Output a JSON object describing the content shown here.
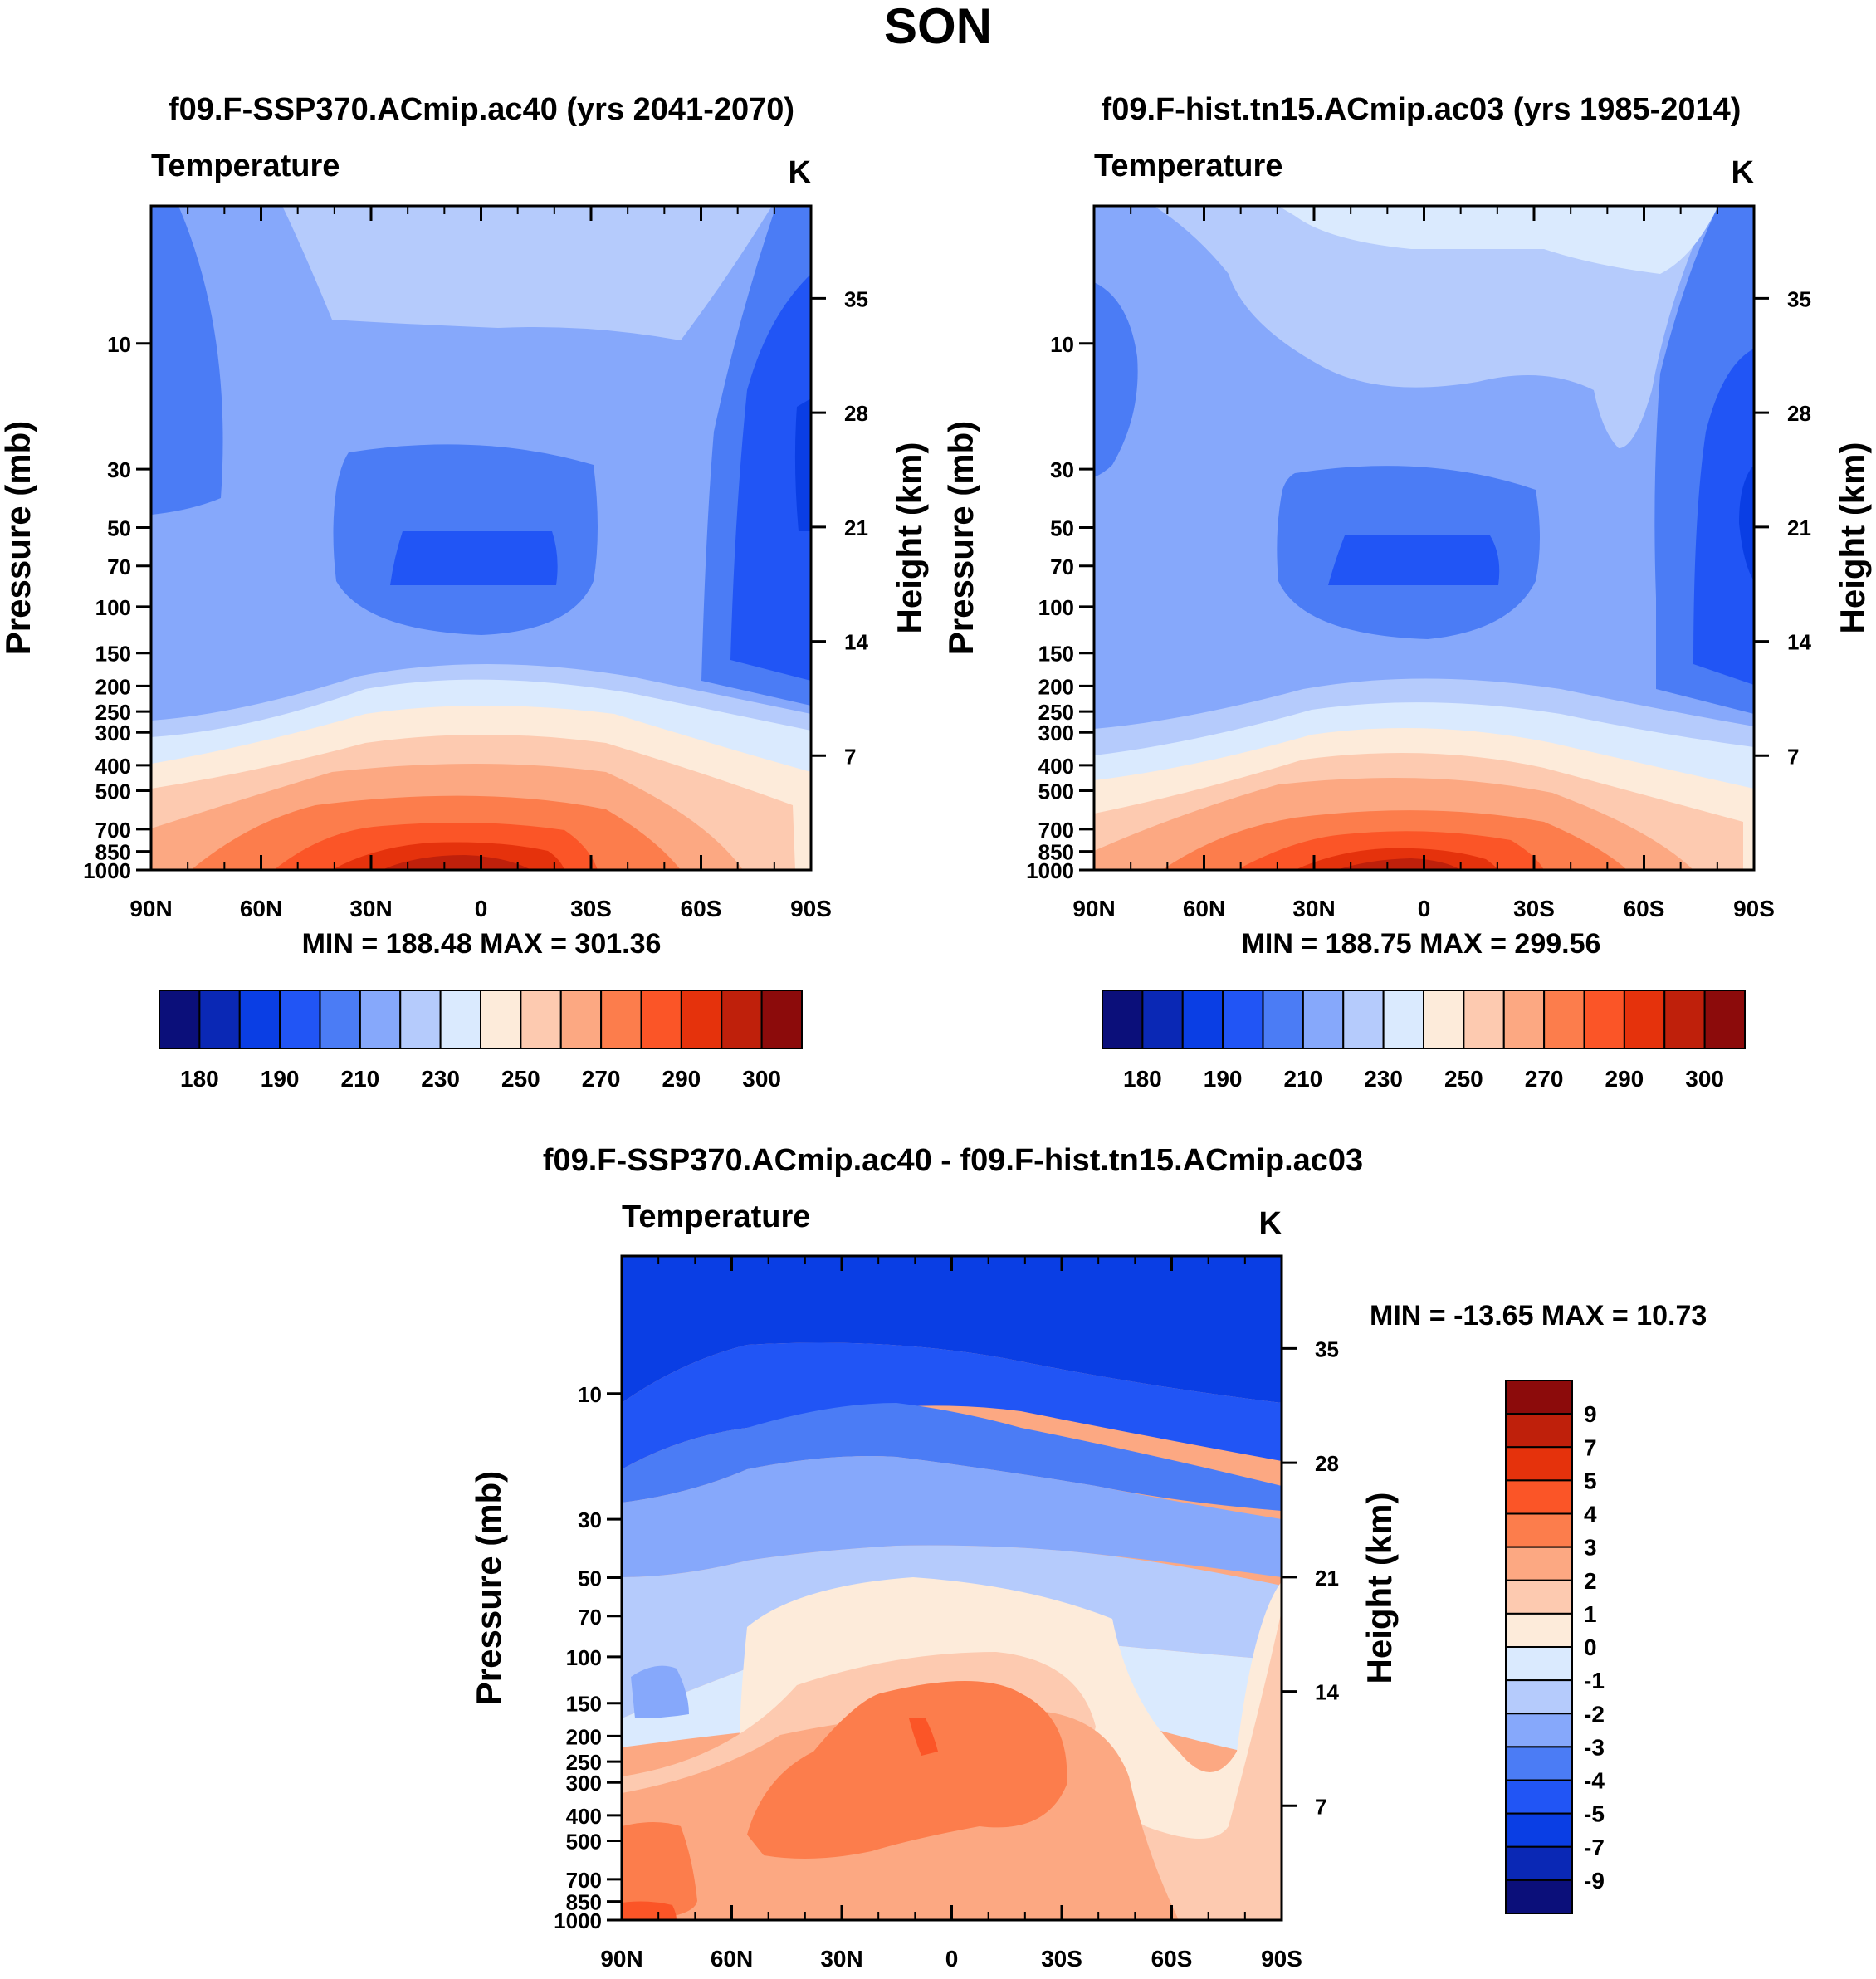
{
  "figure": {
    "title": "SON",
    "panels": [
      {
        "title": "f09.F-SSP370.ACmip.ac40 (yrs 2041-2070)",
        "variable": "Temperature",
        "units": "K",
        "min_max_text": "MIN = 188.48  MAX = 301.36",
        "ylabel": "Pressure (mb)",
        "ylabel_right": "Height (km)"
      },
      {
        "title": "f09.F-hist.tn15.ACmip.ac03 (yrs 1985-2014)",
        "variable": "Temperature",
        "units": "K",
        "min_max_text": "MIN = 188.75  MAX = 299.56",
        "ylabel": "Pressure (mb)",
        "ylabel_right": "Height (km)"
      },
      {
        "title": "f09.F-SSP370.ACmip.ac40 - f09.F-hist.tn15.ACmip.ac03",
        "variable": "Temperature",
        "units": "K",
        "min_max_text": "MIN = -13.65  MAX =  10.73",
        "ylabel": "Pressure (mb)",
        "ylabel_right": "Height (km)"
      }
    ],
    "x_ticks": [
      "90N",
      "60N",
      "30N",
      "0",
      "30S",
      "60S",
      "90S"
    ],
    "pressure_ticks": [
      "10",
      "30",
      "50",
      "70",
      "100",
      "150",
      "200",
      "250",
      "300",
      "400",
      "500",
      "700",
      "850",
      "1000"
    ],
    "height_ticks": [
      "35",
      "28",
      "21",
      "14",
      "7"
    ],
    "abs_colorbar_labels": [
      "180",
      "190",
      "210",
      "230",
      "250",
      "270",
      "290",
      "300"
    ],
    "diff_colorbar_labels": [
      "9",
      "7",
      "5",
      "4",
      "3",
      "2",
      "1",
      "0",
      "-1",
      "-2",
      "-3",
      "-4",
      "-5",
      "-7",
      "-9"
    ]
  },
  "colors": {
    "abs_palette": [
      "#0b0f7a",
      "#0a28b5",
      "#0a3ee4",
      "#2155f5",
      "#4b7cf5",
      "#86a8fb",
      "#b5cbfc",
      "#daeafe",
      "#fdebda",
      "#fdcab0",
      "#fca882",
      "#fc7d4c",
      "#fb5527",
      "#e5320c",
      "#bf200b",
      "#8c0b0b"
    ],
    "diff_palette": [
      "#8c0b0b",
      "#bf200b",
      "#e5320c",
      "#fb5527",
      "#fc7d4c",
      "#fca882",
      "#fdcab0",
      "#fdebda",
      "#daeafe",
      "#b5cbfc",
      "#86a8fb",
      "#4b7cf5",
      "#2155f5",
      "#0a3ee4",
      "#0a28b5",
      "#0b0f7a"
    ]
  },
  "chart_data": [
    {
      "type": "heatmap",
      "title": "f09.F-SSP370.ACmip.ac40 (yrs 2041-2070)",
      "variable": "Temperature",
      "units": "K",
      "x": [
        "90N",
        "60N",
        "30N",
        "0",
        "30S",
        "60S",
        "90S"
      ],
      "ylabel": "Pressure (mb)",
      "ylabel_right": "Height (km)",
      "yrange_mb": [
        3,
        1000
      ],
      "levels": [
        180,
        185,
        190,
        200,
        210,
        220,
        230,
        240,
        250,
        260,
        270,
        280,
        290,
        295,
        300
      ],
      "min": 188.48,
      "max": 301.36
    },
    {
      "type": "heatmap",
      "title": "f09.F-hist.tn15.ACmip.ac03 (yrs 1985-2014)",
      "variable": "Temperature",
      "units": "K",
      "x": [
        "90N",
        "60N",
        "30N",
        "0",
        "30S",
        "60S",
        "90S"
      ],
      "ylabel": "Pressure (mb)",
      "ylabel_right": "Height (km)",
      "yrange_mb": [
        3,
        1000
      ],
      "levels": [
        180,
        185,
        190,
        200,
        210,
        220,
        230,
        240,
        250,
        260,
        270,
        280,
        290,
        295,
        300
      ],
      "min": 188.75,
      "max": 299.56
    },
    {
      "type": "heatmap",
      "title": "f09.F-SSP370.ACmip.ac40 - f09.F-hist.tn15.ACmip.ac03",
      "variable": "Temperature",
      "units": "K",
      "x": [
        "90N",
        "60N",
        "30N",
        "0",
        "30S",
        "60S",
        "90S"
      ],
      "ylabel": "Pressure (mb)",
      "ylabel_right": "Height (km)",
      "yrange_mb": [
        3,
        1000
      ],
      "levels": [
        -9,
        -7,
        -5,
        -4,
        -3,
        -2,
        -1,
        0,
        1,
        2,
        3,
        4,
        5,
        7,
        9
      ],
      "min": -13.65,
      "max": 10.73
    }
  ]
}
